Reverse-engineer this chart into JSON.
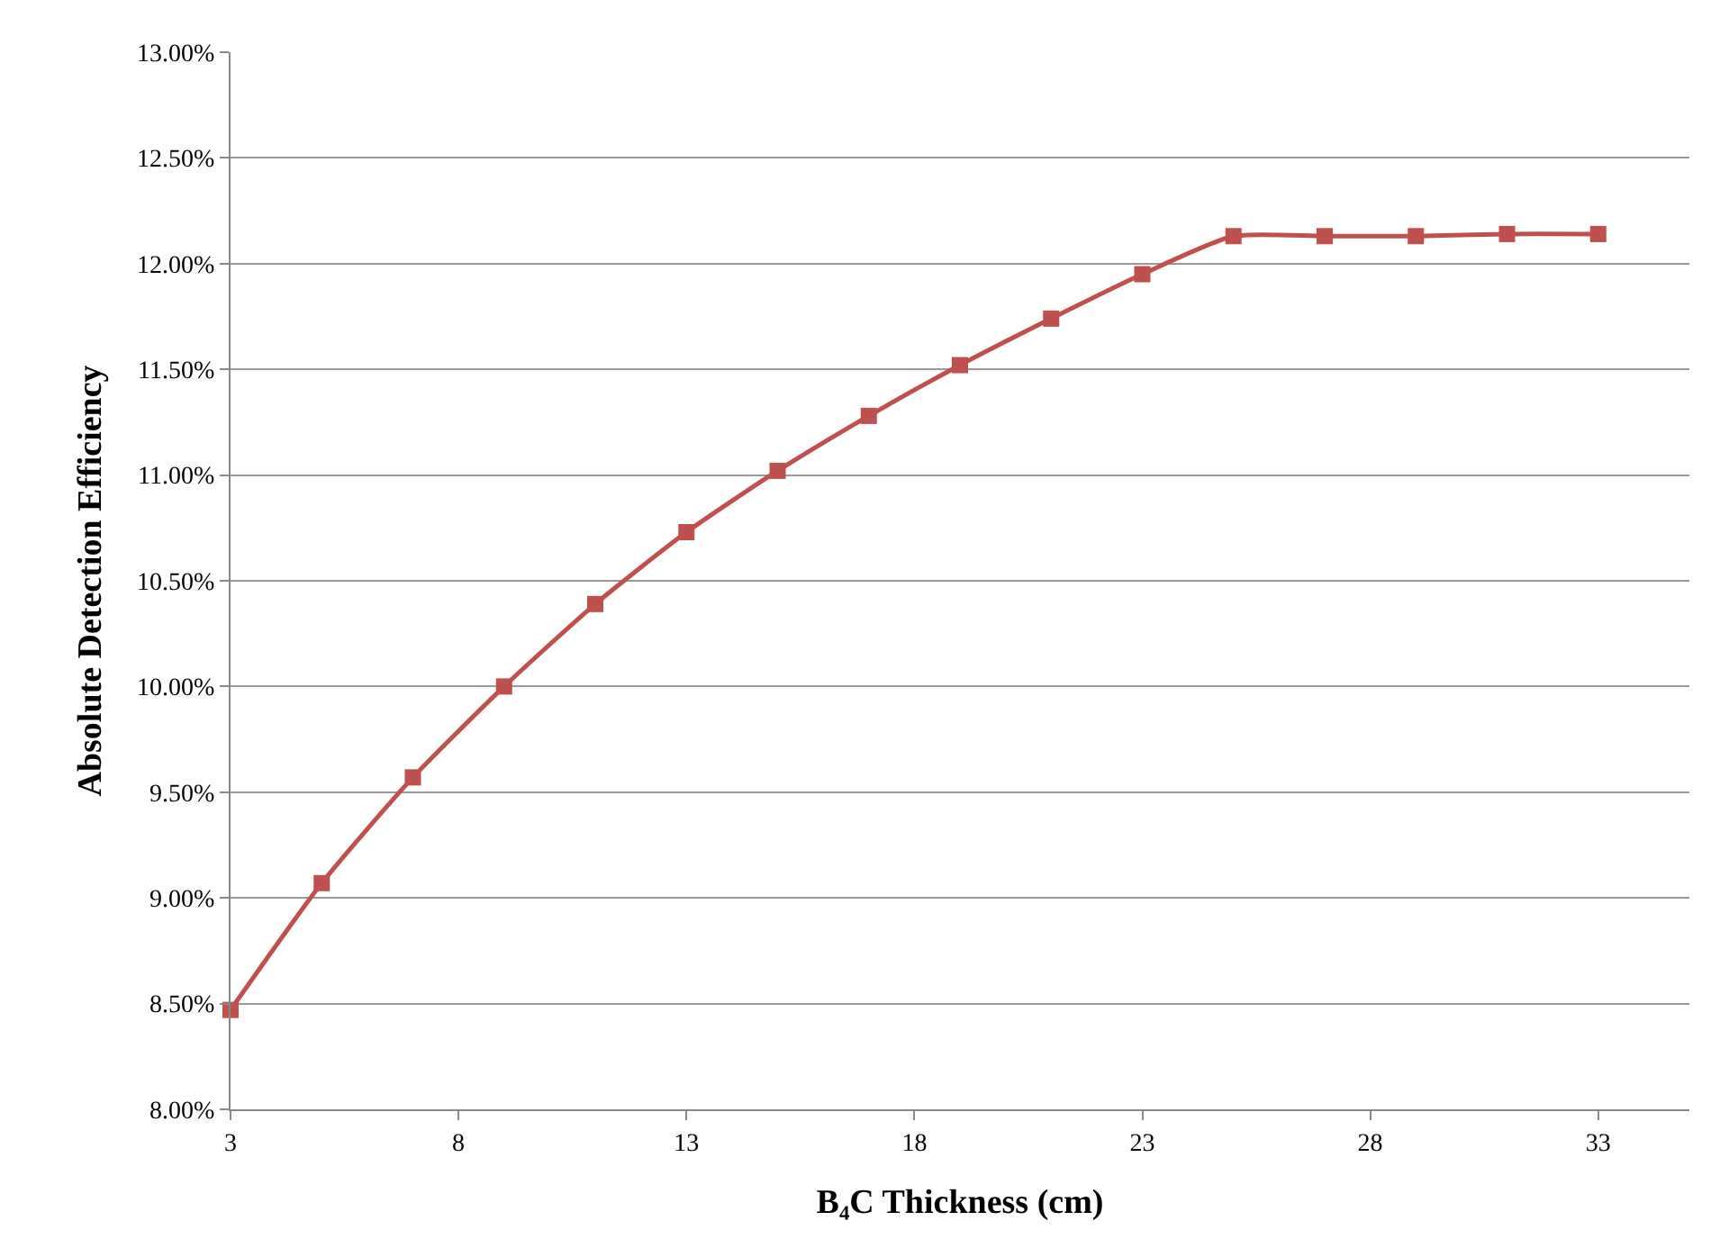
{
  "chart_data": {
    "type": "line",
    "xlabel": "B₄C Thickness (cm)",
    "ylabel": "Absolute Detection Efficiency",
    "x": [
      3,
      5,
      7,
      9,
      11,
      13,
      15,
      17,
      19,
      21,
      23,
      25,
      27,
      29,
      31,
      33
    ],
    "series": [
      {
        "color": "#c0504d",
        "values": [
          8.47,
          9.07,
          9.57,
          10.0,
          10.39,
          10.73,
          11.02,
          11.28,
          11.52,
          11.74,
          11.95,
          12.13,
          12.13,
          12.13,
          12.14,
          12.14
        ]
      }
    ],
    "xlim": [
      3,
      35
    ],
    "xticks": [
      3,
      8,
      13,
      18,
      23,
      28,
      33
    ],
    "ylim": [
      8,
      13
    ],
    "yticks": [
      {
        "value": 8,
        "label": "8.00%"
      },
      {
        "value": 8.5,
        "label": "8.50%"
      },
      {
        "value": 9,
        "label": "9.00%"
      },
      {
        "value": 9.5,
        "label": "9.50%"
      },
      {
        "value": 10,
        "label": "10.00%"
      },
      {
        "value": 10.5,
        "label": "10.50%"
      },
      {
        "value": 11,
        "label": "11.00%"
      },
      {
        "value": 11.5,
        "label": "11.50%"
      },
      {
        "value": 12,
        "label": "12.00%"
      },
      {
        "value": 12.5,
        "label": "12.50%"
      },
      {
        "value": 13,
        "label": "13.00%"
      }
    ],
    "grid": "y",
    "marker": "square",
    "line_style": "solid"
  }
}
